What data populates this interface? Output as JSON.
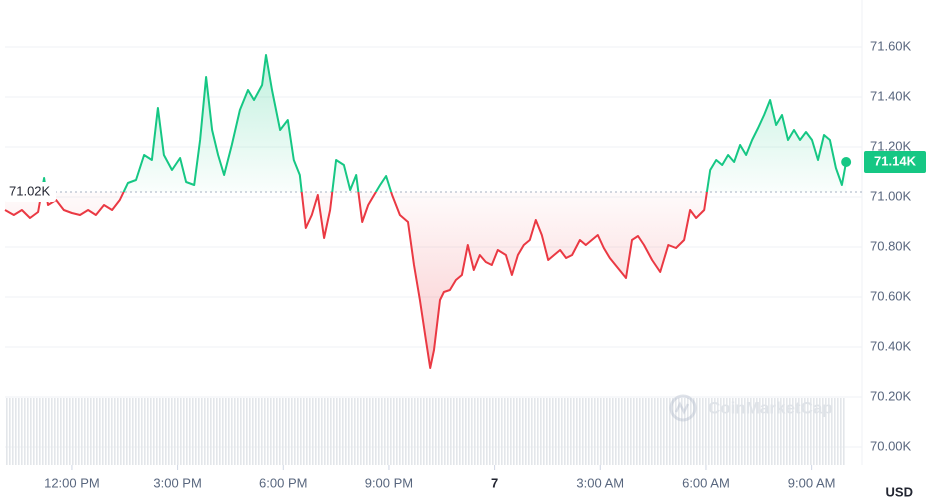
{
  "chart_data": {
    "type": "line",
    "x_label": "USD",
    "watermark": "CoinMarketCap",
    "baseline": {
      "value": 71020,
      "label": "71.02K"
    },
    "current_price": {
      "value": 71140,
      "label": "71.14K"
    },
    "up_color": "#16c784",
    "down_color": "#ea3943",
    "grid": true,
    "xlim": [
      10.1,
      34.43
    ],
    "ylim": [
      69928,
      71768
    ],
    "xticks": [
      {
        "value": 12,
        "label": "12:00 PM"
      },
      {
        "value": 15,
        "label": "3:00 PM"
      },
      {
        "value": 18,
        "label": "6:00 PM"
      },
      {
        "value": 21,
        "label": "9:00 PM"
      },
      {
        "value": 24,
        "label": "7"
      },
      {
        "value": 27,
        "label": "3:00 AM"
      },
      {
        "value": 30,
        "label": "6:00 AM"
      },
      {
        "value": 33,
        "label": "9:00 AM"
      }
    ],
    "yticks": [
      {
        "value": 70000,
        "label": "70.00K"
      },
      {
        "value": 70200,
        "label": "70.20K"
      },
      {
        "value": 70400,
        "label": "70.40K"
      },
      {
        "value": 70600,
        "label": "70.60K"
      },
      {
        "value": 70800,
        "label": "70.80K"
      },
      {
        "value": 71000,
        "label": "71.00K"
      },
      {
        "value": 71200,
        "label": "71.20K"
      },
      {
        "value": 71400,
        "label": "71.40K"
      },
      {
        "value": 71600,
        "label": "71.60K"
      }
    ],
    "x": [
      10.1,
      10.35,
      10.58,
      10.81,
      11.04,
      11.21,
      11.32,
      11.55,
      11.77,
      12.0,
      12.23,
      12.46,
      12.68,
      12.91,
      13.14,
      13.36,
      13.59,
      13.82,
      14.05,
      14.27,
      14.44,
      14.61,
      14.84,
      15.07,
      15.24,
      15.47,
      15.64,
      15.81,
      15.98,
      16.15,
      16.32,
      16.54,
      16.77,
      17.0,
      17.17,
      17.4,
      17.51,
      17.68,
      17.91,
      18.13,
      18.3,
      18.47,
      18.64,
      18.81,
      18.98,
      19.16,
      19.33,
      19.5,
      19.72,
      19.9,
      20.07,
      20.24,
      20.41,
      20.58,
      20.75,
      20.92,
      21.09,
      21.31,
      21.54,
      21.71,
      21.88,
      22.05,
      22.17,
      22.28,
      22.45,
      22.56,
      22.73,
      22.9,
      23.07,
      23.24,
      23.41,
      23.58,
      23.75,
      23.92,
      24.09,
      24.32,
      24.49,
      24.66,
      24.83,
      25.0,
      25.17,
      25.34,
      25.52,
      25.69,
      25.86,
      26.03,
      26.2,
      26.42,
      26.59,
      26.76,
      26.93,
      27.1,
      27.27,
      27.5,
      27.73,
      27.9,
      28.07,
      28.24,
      28.47,
      28.7,
      28.93,
      29.15,
      29.38,
      29.55,
      29.72,
      29.95,
      30.12,
      30.29,
      30.46,
      30.63,
      30.8,
      30.97,
      31.14,
      31.31,
      31.48,
      31.65,
      31.82,
      31.99,
      32.16,
      32.33,
      32.5,
      32.67,
      32.84,
      33.01,
      33.18,
      33.35,
      33.52,
      33.69,
      33.86,
      33.98
    ],
    "values": [
      70948,
      70928,
      70948,
      70916,
      70940,
      71076,
      70968,
      70988,
      70948,
      70936,
      70928,
      70948,
      70928,
      70968,
      70948,
      70988,
      71056,
      71068,
      71168,
      71148,
      71356,
      71168,
      71108,
      71156,
      71060,
      71048,
      71228,
      71480,
      71268,
      71168,
      71088,
      71208,
      71348,
      71428,
      71388,
      71448,
      71568,
      71428,
      71268,
      71308,
      71148,
      71088,
      70876,
      70928,
      71008,
      70836,
      70948,
      71148,
      71128,
      71028,
      71088,
      70900,
      70968,
      71008,
      71048,
      71084,
      71008,
      70928,
      70900,
      70728,
      70588,
      70428,
      70316,
      70388,
      70588,
      70620,
      70628,
      70668,
      70688,
      70808,
      70708,
      70768,
      70740,
      70728,
      70788,
      70768,
      70688,
      70768,
      70808,
      70828,
      70908,
      70848,
      70748,
      70768,
      70788,
      70756,
      70768,
      70828,
      70808,
      70828,
      70848,
      70796,
      70756,
      70716,
      70676,
      70828,
      70844,
      70808,
      70748,
      70700,
      70808,
      70796,
      70828,
      70948,
      70916,
      70948,
      71108,
      71148,
      71128,
      71168,
      71140,
      71208,
      71168,
      71228,
      71276,
      71328,
      71388,
      71288,
      71328,
      71228,
      71268,
      71228,
      71260,
      71228,
      71148,
      71248,
      71228,
      71116,
      71048,
      71140
    ]
  }
}
